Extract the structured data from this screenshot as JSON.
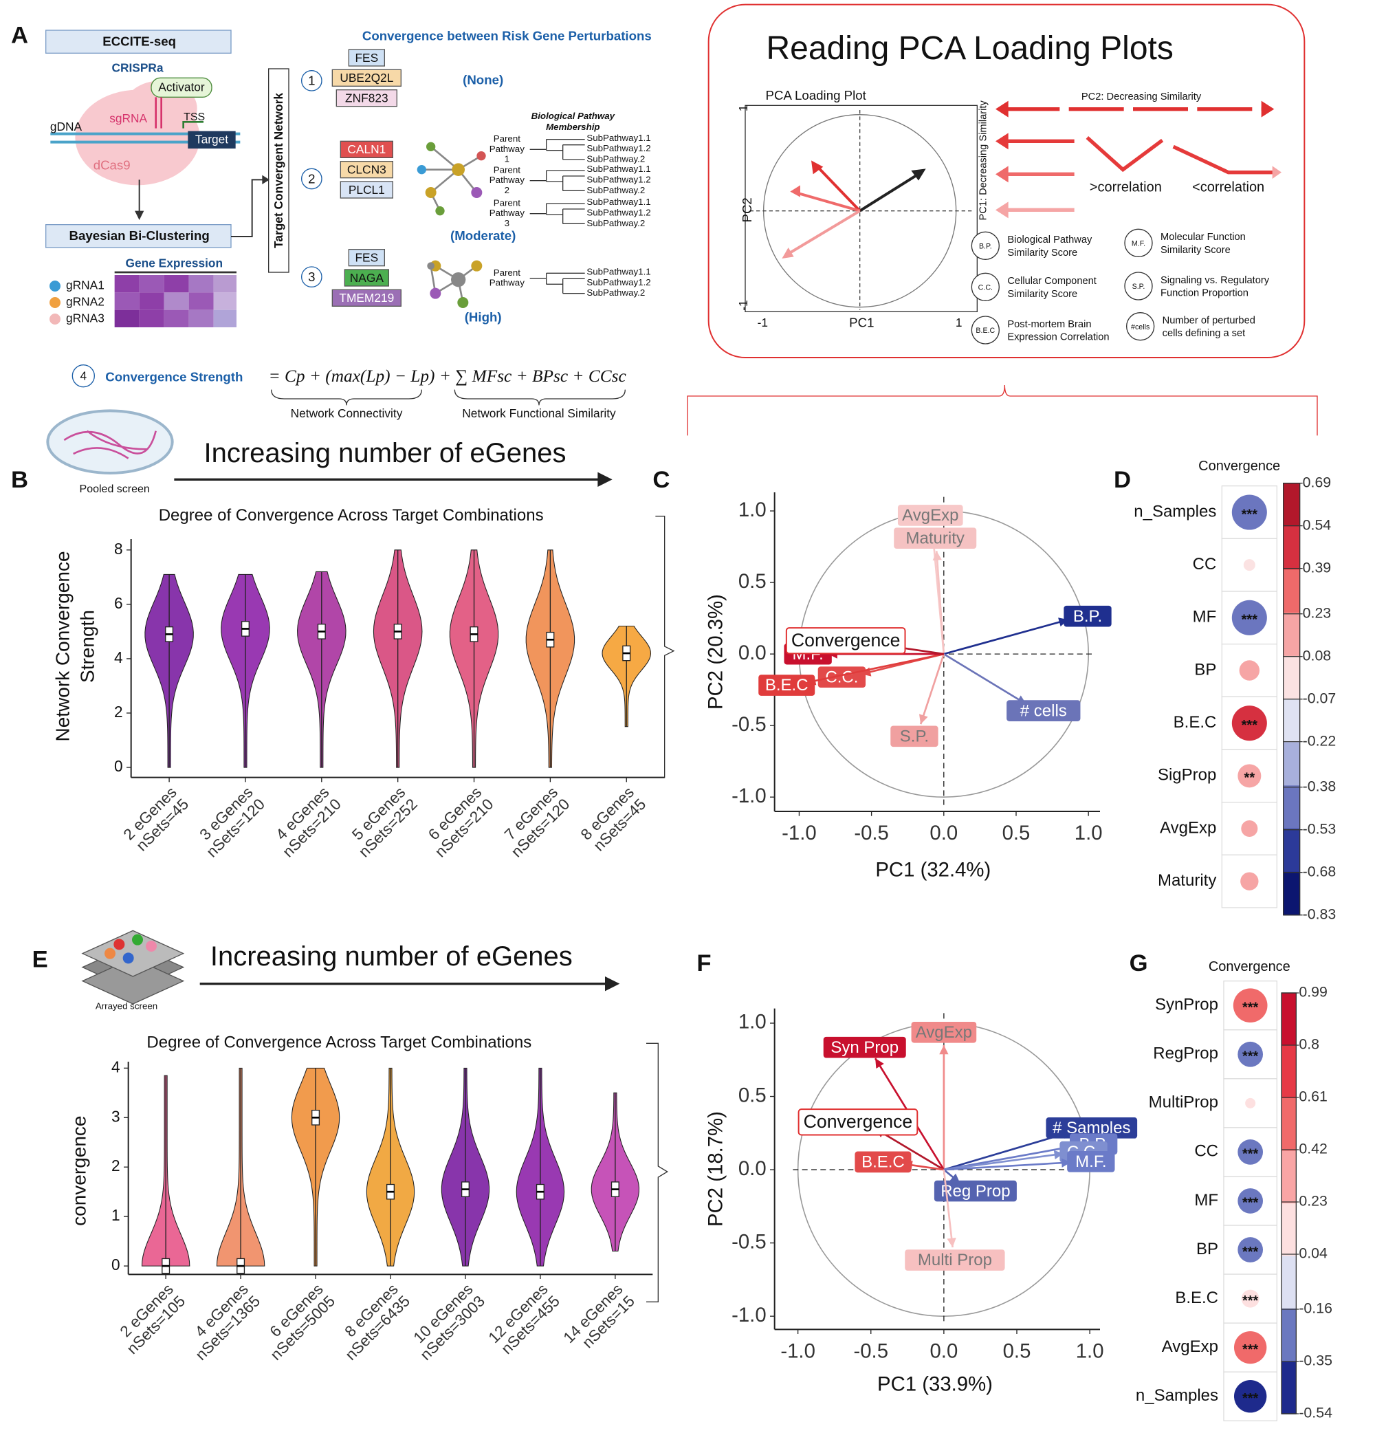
{
  "panel_labels": [
    "A",
    "B",
    "C",
    "D",
    "E",
    "F",
    "G"
  ],
  "panel_a": {
    "eccite": "ECCITE-seq",
    "crispra": "CRISPRa",
    "activator": "Activator",
    "sgrna": "sgRNA",
    "tss": "TSS",
    "gdna": "gDNA",
    "target": "Target",
    "dcas9": "dCas9",
    "bayesian": "Bayesian Bi-Clustering",
    "gene_expression": "Gene Expression",
    "grnas": [
      "gRNA1",
      "gRNA2",
      "gRNA3"
    ],
    "network": "Target Convergent Network",
    "convergence_title": "Convergence between Risk Gene Perturbations",
    "groups": [
      {
        "number": "1",
        "genes": [
          "FES",
          "UBE2Q2L",
          "ZNF823"
        ],
        "level": "(None)"
      },
      {
        "number": "2",
        "genes": [
          "CALN1",
          "CLCN3",
          "PLCL1"
        ],
        "level": "(Moderate)"
      },
      {
        "number": "3",
        "genes": [
          "FES",
          "NAGA",
          "TMEM219"
        ],
        "level": "(High)"
      }
    ],
    "pathway_title": [
      "Biological Pathway",
      "Membership"
    ],
    "trees": [
      {
        "parent": [
          "Parent",
          "Pathway",
          "1"
        ],
        "children": [
          "SubPathway1.1",
          "SubPathway1.2",
          "SubPathway.2"
        ]
      },
      {
        "parent": [
          "Parent",
          "Pathway",
          "2"
        ],
        "children": [
          "SubPathway1.1",
          "SubPathway1.2",
          "SubPathway.2"
        ]
      },
      {
        "parent": [
          "Parent",
          "Pathway",
          "3"
        ],
        "children": [
          "SubPathway1.1",
          "SubPathway1.2",
          "SubPathway.2"
        ]
      },
      {
        "parent": [
          "Parent",
          "Pathway"
        ],
        "children": [
          "SubPathway1.1",
          "SubPathway1.2",
          "SubPathway.2"
        ]
      }
    ],
    "step4": "4",
    "strength": "Convergence Strength",
    "formula": "= Cp + (max(Lp) − Lp) + ∑ MFsc + BPsc + CCsc",
    "connectivity": "Network Connectivity",
    "functional": "Network Functional Similarity",
    "pooled": "Pooled screen",
    "increasing": "Increasing number of eGenes"
  },
  "pca_guide": {
    "title": "Reading PCA Loading Plots",
    "plot_title": "PCA Loading Plot",
    "x_label": "PC1",
    "y_label": "PC2",
    "ticks": [
      "-1",
      "1"
    ],
    "pc2_note": "PC2: Decreasing Similarity",
    "pc1_note": "PC1: Decreasing Similarity",
    "more": ">correlation",
    "less": "<correlation",
    "legend": [
      {
        "abbr": "B.P.",
        "text": [
          "Biological Pathway",
          "Similarity Score"
        ]
      },
      {
        "abbr": "M.F.",
        "text": [
          "Molecular Function",
          "Similarity Score"
        ]
      },
      {
        "abbr": "C.C.",
        "text": [
          "Cellular Component",
          "Similarity Score"
        ]
      },
      {
        "abbr": "S.P.",
        "text": [
          "Signaling vs. Regulatory",
          "Function Proportion"
        ]
      },
      {
        "abbr": "B.E.C",
        "text": [
          "Post-mortem Brain",
          "Expression Correlation"
        ]
      },
      {
        "abbr": "#cells",
        "text": [
          "Number of perturbed",
          "cells defining a set"
        ]
      }
    ]
  },
  "panel_e": {
    "arrayed": "Arrayed screen",
    "increasing": "Increasing number of eGenes"
  },
  "chart_data": [
    {
      "type": "violin",
      "title": "Degree of Convergence Across Target Combinations",
      "y_label": [
        "Network Convergence",
        "Strength"
      ],
      "categories": [
        "2 eGenes",
        "3 eGenes",
        "4 eGenes",
        "5 eGenes",
        "6 eGenes",
        "7 eGenes",
        "8 eGenes"
      ],
      "sets": [
        "nSets=45",
        "nSets=120",
        "nSets=210",
        "nSets=252",
        "nSets=210",
        "nSets=120",
        "nSets=45"
      ],
      "medians": [
        4.9,
        5.1,
        5.0,
        5.0,
        4.9,
        4.7,
        4.2
      ],
      "maxima": [
        7.1,
        7.1,
        7.2,
        8,
        8,
        8,
        5.2
      ],
      "minima": [
        0,
        0,
        0,
        0,
        0,
        0,
        1.5
      ],
      "colors": [
        "#7b1fa2",
        "#8e24aa",
        "#a8329e",
        "#d6457a",
        "#e0507a",
        "#f08a4a",
        "#f5a030"
      ],
      "ylim": [
        -0.37,
        8.4
      ],
      "yticks": [
        0,
        2,
        4,
        6,
        8
      ]
    },
    {
      "type": "biplot",
      "x_label": "PC1 (32.4%)",
      "y_label": "PC2 (20.3%)",
      "xlim": [
        -1.17,
        1.08
      ],
      "ylim": [
        -1.1,
        1.13
      ],
      "xticks": [
        {
          "value": -1,
          "label": "-1.0"
        },
        -0.5,
        {
          "value": 0,
          "label": "0.0"
        },
        0.5,
        {
          "value": 1,
          "label": "1.0"
        }
      ],
      "yticks": [
        {
          "value": -1,
          "label": "-1.0"
        },
        -0.5,
        {
          "value": 0,
          "label": "0.0"
        },
        0.5,
        {
          "value": 1,
          "label": "1.0"
        }
      ],
      "highlight": "Convergence",
      "series": [
        {
          "name": "AvgExp",
          "color": "#f7c8c8",
          "x": -0.08,
          "y": 0.88
        },
        {
          "name": "Maturity",
          "color": "#f5c2c2",
          "x": -0.05,
          "y": 0.72
        },
        {
          "name": "B.P.",
          "color": "#1f2f8f",
          "x": 0.86,
          "y": 0.24
        },
        {
          "name": "# cells",
          "color": "#6b74b8",
          "x": 0.57,
          "y": -0.35
        },
        {
          "name": "S.P.",
          "color": "#f0a0a0",
          "x": -0.16,
          "y": -0.49
        },
        {
          "name": "C.C.",
          "color": "#e24a4a",
          "x": -0.57,
          "y": -0.14
        },
        {
          "name": "B.E.C",
          "color": "#e03c3c",
          "x": -0.95,
          "y": -0.2
        },
        {
          "name": "M.F.",
          "color": "#c8102e",
          "x": -0.8,
          "y": 0.0
        },
        {
          "name": "Convergence",
          "color": "#b2182b",
          "x": -0.54,
          "y": 0.08
        }
      ]
    },
    {
      "type": "corrdot",
      "title": "Convergence",
      "rows": [
        "n_Samples",
        "CC",
        "MF",
        "BP",
        "B.E.C",
        "SigProp",
        "AvgExp",
        "Maturity"
      ],
      "values": [
        -0.45,
        0.05,
        -0.45,
        0.15,
        0.45,
        0.2,
        0.1,
        0.12
      ],
      "stars": [
        "***",
        null,
        "***",
        null,
        "***",
        "**",
        null,
        null
      ],
      "clim": [
        -0.83,
        0.69
      ],
      "cticks": [
        0.69,
        0.54,
        0.39,
        0.23,
        0.08,
        -0.07,
        -0.22,
        -0.38,
        -0.53,
        -0.68,
        -0.83
      ],
      "colors": [
        "#b2182b",
        "#d63040",
        "#ef6a6a",
        "#f6a5a5",
        "#fbe2e2",
        "#dfe2f2",
        "#a8b0dc",
        "#6b76bf",
        "#2c3a99",
        "#0c1670"
      ]
    },
    {
      "type": "violin",
      "title": "Degree of Convergence Across Target Combinations",
      "y_label": [
        "convergence"
      ],
      "categories": [
        "2 eGenes",
        "4 eGenes",
        "6 eGenes",
        "8 eGenes",
        "10 eGenes",
        "12 eGenes",
        "14 eGenes"
      ],
      "sets": [
        "nSets=105",
        "nSets=1365",
        "nSets=5005",
        "nSets=6435",
        "nSets=3003",
        "nSets=455",
        "nSets=15"
      ],
      "medians": [
        0.0,
        0.0,
        3.0,
        1.5,
        1.55,
        1.5,
        1.55
      ],
      "maxima": [
        3.85,
        4.0,
        4.0,
        4.0,
        4.0,
        4.0,
        3.5
      ],
      "minima": [
        0,
        0,
        0,
        0,
        0,
        0,
        0.3
      ],
      "colors": [
        "#e8568a",
        "#f08a60",
        "#f0903a",
        "#f0a030",
        "#7b1fa2",
        "#8e24aa",
        "#c040b0"
      ],
      "ylim": [
        -0.17,
        4.13
      ],
      "yticks": [
        0,
        1,
        2,
        3,
        4
      ]
    },
    {
      "type": "biplot",
      "x_label": "PC1 (33.9%)",
      "y_label": "PC2 (18.7%)",
      "xlim": [
        -1.16,
        1.07
      ],
      "ylim": [
        -1.09,
        1.1
      ],
      "xticks": [
        {
          "value": -1,
          "label": "-1.0"
        },
        -0.5,
        {
          "value": 0,
          "label": "0.0"
        },
        0.5,
        {
          "value": 1,
          "label": "1.0"
        }
      ],
      "yticks": [
        {
          "value": -1,
          "label": "-1.0"
        },
        -0.5,
        {
          "value": 0,
          "label": "0.0"
        },
        0.5,
        {
          "value": 1,
          "label": "1.0"
        }
      ],
      "highlight": "Convergence",
      "series": [
        {
          "name": "AvgExp",
          "color": "#f08a8a",
          "x": 0.0,
          "y": 0.85
        },
        {
          "name": "Syn Prop",
          "color": "#c8102e",
          "x": -0.47,
          "y": 0.76
        },
        {
          "name": "Convergence",
          "color": "#b2182b",
          "x": -0.47,
          "y": 0.28
        },
        {
          "name": "B.E.C",
          "color": "#e24a4a",
          "x": -0.28,
          "y": 0.04
        },
        {
          "name": "# Samples",
          "color": "#2c3e99",
          "x": 0.88,
          "y": 0.26
        },
        {
          "name": "B.P.",
          "color": "#6b7bc8",
          "x": 0.89,
          "y": 0.16
        },
        {
          "name": "C.C.",
          "color": "#7f8fd0",
          "x": 0.82,
          "y": 0.11
        },
        {
          "name": "M.F.",
          "color": "#6b7bc8",
          "x": 0.87,
          "y": 0.05
        },
        {
          "name": "Reg Prop",
          "color": "#5563b0",
          "x": 0.11,
          "y": -0.09
        },
        {
          "name": "Multi Prop",
          "color": "#f7c0c0",
          "x": 0.06,
          "y": -0.53
        }
      ]
    },
    {
      "type": "corrdot",
      "title": "Convergence",
      "rows": [
        "SynProp",
        "RegProp",
        "MultiProp",
        "CC",
        "MF",
        "BP",
        "B.E.C",
        "AvgExp",
        "n_Samples"
      ],
      "values": [
        0.55,
        -0.3,
        0.05,
        -0.3,
        -0.3,
        -0.3,
        0.15,
        0.5,
        -0.5
      ],
      "stars": [
        "***",
        "***",
        null,
        "***",
        "***",
        "***",
        "***",
        "***",
        "***"
      ],
      "clim": [
        -0.54,
        0.99
      ],
      "cticks": [
        0.99,
        0.8,
        0.61,
        0.42,
        0.23,
        0.04,
        -0.16,
        -0.35,
        -0.54
      ],
      "colors": [
        "#c8102e",
        "#e63946",
        "#f06a6a",
        "#f9a5a5",
        "#fde0e0",
        "#dde0f2",
        "#6b78c0",
        "#1e2a8c"
      ]
    }
  ]
}
